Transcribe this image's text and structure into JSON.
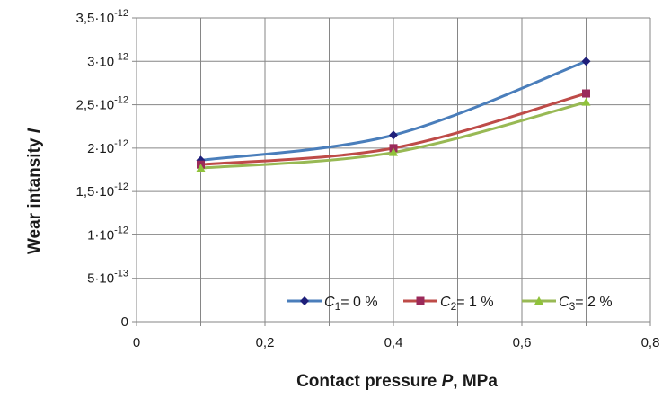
{
  "chart_data": {
    "type": "line",
    "xlabel": {
      "pre": "Contact pressure ",
      "var": "P",
      "post": ", MPa"
    },
    "ylabel": {
      "pre": "Wear intansity ",
      "var": "I"
    },
    "xlim": [
      0,
      0.8
    ],
    "ylim": [
      0,
      3.5e-12
    ],
    "grid": true,
    "legend_position": "bottom-right",
    "x_ticks": [
      {
        "value": 0,
        "label": "0"
      },
      {
        "value": 0.1,
        "label": ""
      },
      {
        "value": 0.2,
        "label": "0,2"
      },
      {
        "value": 0.3,
        "label": ""
      },
      {
        "value": 0.4,
        "label": "0,4"
      },
      {
        "value": 0.5,
        "label": ""
      },
      {
        "value": 0.6,
        "label": "0,6"
      },
      {
        "value": 0.7,
        "label": ""
      },
      {
        "value": 0.8,
        "label": "0,8"
      }
    ],
    "y_ticks": [
      {
        "value": 0,
        "mant": "0",
        "exp": ""
      },
      {
        "value": 5e-13,
        "mant": "5·10",
        "exp": "-13"
      },
      {
        "value": 1e-12,
        "mant": "1·10",
        "exp": "-12"
      },
      {
        "value": 1.5e-12,
        "mant": "1,5·10",
        "exp": "-12"
      },
      {
        "value": 2e-12,
        "mant": "2·10",
        "exp": "-12"
      },
      {
        "value": 2.5e-12,
        "mant": "2,5·10",
        "exp": "-12"
      },
      {
        "value": 3e-12,
        "mant": "3·10",
        "exp": "-12"
      },
      {
        "value": 3.5e-12,
        "mant": "3,5·10",
        "exp": "-12"
      }
    ],
    "x": [
      0.1,
      0.4,
      0.7
    ],
    "series": [
      {
        "name": "C1= 0 %",
        "label": {
          "var": "C",
          "sub": "1",
          "rest": "= 0 %"
        },
        "color": "#4a7ebb",
        "marker_color": "#1f1f7a",
        "marker": "diamond",
        "values": [
          1.86e-12,
          2.15e-12,
          3e-12
        ]
      },
      {
        "name": "C2= 1 %",
        "label": {
          "var": "C",
          "sub": "2",
          "rest": "= 1 %"
        },
        "color": "#be4b48",
        "marker_color": "#9b2a5a",
        "marker": "square",
        "values": [
          1.81e-12,
          2e-12,
          2.63e-12
        ]
      },
      {
        "name": "C3= 2 %",
        "label": {
          "var": "C",
          "sub": "3",
          "rest": "= 2 %"
        },
        "color": "#98b954",
        "marker_color": "#8fc23a",
        "marker": "triangle",
        "values": [
          1.77e-12,
          1.95e-12,
          2.53e-12
        ]
      }
    ]
  }
}
